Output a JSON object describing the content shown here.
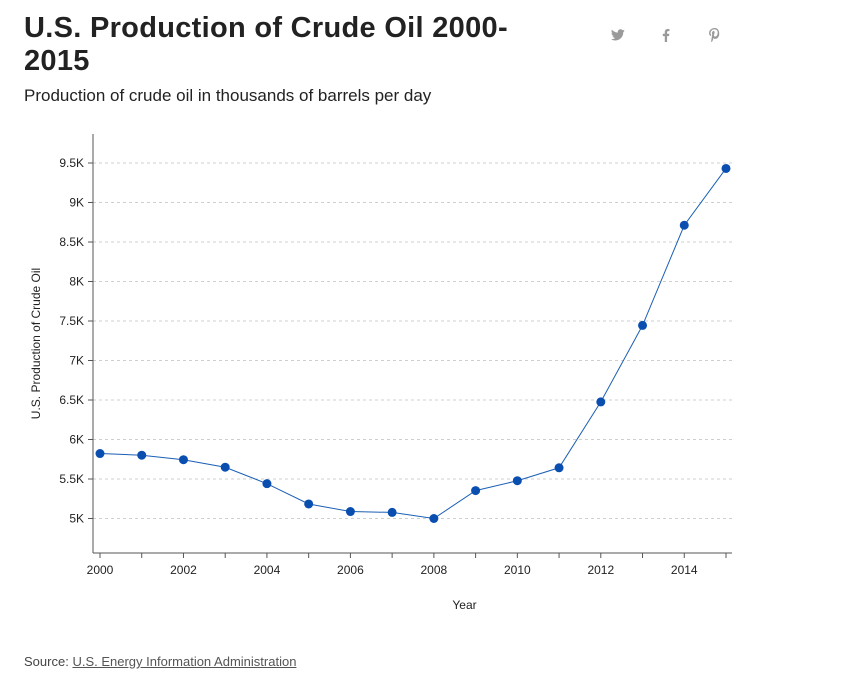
{
  "header": {
    "title": "U.S. Production of Crude Oil 2000-2015",
    "subtitle": "Production of crude oil in thousands of barrels per day"
  },
  "share": {
    "twitter_icon": "twitter-icon",
    "facebook_icon": "facebook-icon",
    "pinterest_icon": "pinterest-icon",
    "icon_color": "#9a9a9a"
  },
  "chart_data": {
    "type": "line",
    "x": [
      2000,
      2001,
      2002,
      2003,
      2004,
      2005,
      2006,
      2007,
      2008,
      2009,
      2010,
      2011,
      2012,
      2013,
      2014,
      2015
    ],
    "series": [
      {
        "values": [
          5822,
          5801,
          5744,
          5649,
          5441,
          5184,
          5088,
          5077,
          5000,
          5353,
          5478,
          5642,
          6476,
          7444,
          8712,
          9431
        ]
      }
    ],
    "xlabel": "Year",
    "ylabel": "U.S. Production of Crude Oil",
    "xlim": [
      2000,
      2015
    ],
    "ylim": [
      4650,
      9850
    ],
    "x_ticks": [
      2000,
      2002,
      2004,
      2006,
      2008,
      2010,
      2012,
      2014
    ],
    "x_tick_labels": [
      "2000",
      "2002",
      "2004",
      "2006",
      "2008",
      "2010",
      "2012",
      "2014"
    ],
    "y_ticks": [
      5000,
      5500,
      6000,
      6500,
      7000,
      7500,
      8000,
      8500,
      9000,
      9500
    ],
    "y_tick_labels": [
      "5K",
      "5.5K",
      "6K",
      "6.5K",
      "7K",
      "7.5K",
      "8K",
      "8.5K",
      "9K",
      "9.5K"
    ],
    "grid": true,
    "line_color": "#1a5fb4",
    "marker_color": "#0a4fb0",
    "grid_color": "#cfcfcf"
  },
  "footer": {
    "source_prefix": "Source:",
    "source_link": "U.S. Energy Information Administration"
  }
}
